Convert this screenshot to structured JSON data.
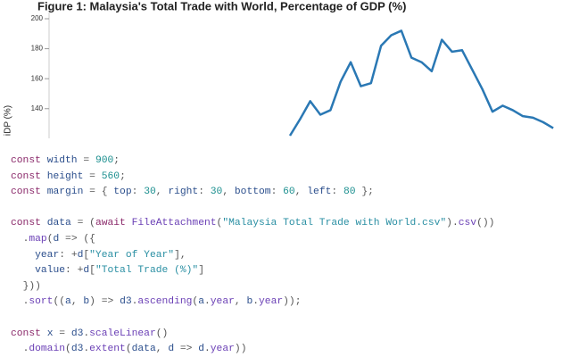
{
  "chart_data": {
    "type": "line",
    "title": "Figure 1: Malaysia's Total Trade with World, Percentage of GDP (%)",
    "y_label": "iDP (%)",
    "categories": [
      null,
      null,
      null,
      null,
      null,
      null,
      null,
      null,
      null,
      null,
      null,
      null,
      null,
      null,
      null,
      null,
      null,
      null,
      null,
      null,
      null,
      null,
      null,
      null,
      null,
      null,
      null
    ],
    "values": [
      122,
      133,
      145,
      136,
      139,
      158,
      171,
      155,
      157,
      182,
      189,
      192,
      174,
      171,
      165,
      186,
      178,
      179,
      166,
      153,
      138,
      142,
      139,
      135,
      134,
      131,
      127
    ],
    "color": "#2a78b4",
    "ylim": [
      122,
      200
    ],
    "yticks": [
      140,
      160,
      180,
      200
    ],
    "grid": false
  },
  "code": {
    "blocks": [
      [
        "const width = 900;",
        "const height = 560;",
        "const margin = { top: 30, right: 30, bottom: 60, left: 80 };"
      ],
      [
        "const data = (await FileAttachment(\"Malaysia Total Trade with World.csv\").csv())",
        "  .map(d => ({",
        "    year: +d[\"Year of Year\"],",
        "    value: +d[\"Total Trade (%)\"]",
        "  }))",
        "  .sort((a, b) => d3.ascending(a.year, b.year));"
      ],
      [
        "const x = d3.scaleLinear()",
        "  .domain(d3.extent(data, d => d.year))"
      ]
    ]
  }
}
